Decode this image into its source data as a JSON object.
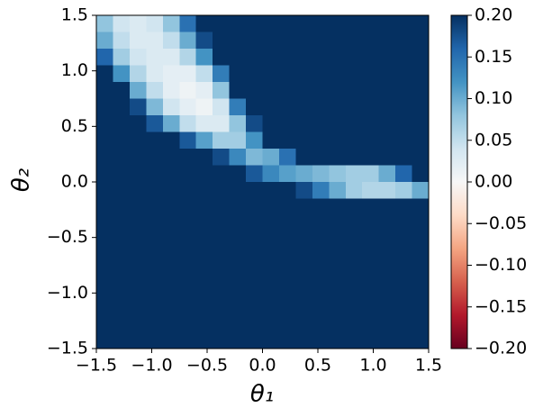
{
  "chart_data": {
    "type": "heatmap",
    "x_label": "θ₁",
    "y_label": "θ₂",
    "xlim": [
      -1.5,
      1.5
    ],
    "ylim": [
      -1.5,
      1.5
    ],
    "xticks": [
      {
        "value": -1.5,
        "label": "−1.5"
      },
      {
        "value": -1.0,
        "label": "−1.0"
      },
      {
        "value": -0.5,
        "label": "−0.5"
      },
      {
        "value": 0,
        "label": "0.0"
      },
      0.5,
      {
        "value": 1.0,
        "label": "1.0"
      },
      1.5
    ],
    "yticks": [
      {
        "value": -1.5,
        "label": "−1.5"
      },
      {
        "value": -1.0,
        "label": "−1.0"
      },
      {
        "value": -0.5,
        "label": "−0.5"
      },
      {
        "value": 0,
        "label": "0.0"
      },
      0.5,
      {
        "value": 1.0,
        "label": "1.0"
      },
      1.5
    ],
    "colorscale": [
      "#67001f",
      "#b2182b",
      "#d6604d",
      "#f4a582",
      "#fddbc7",
      "#f7f7f7",
      "#d1e5f0",
      "#92c5de",
      "#4393c3",
      "#2166ac",
      "#053061"
    ],
    "clim": [
      -0.2,
      0.2
    ],
    "cticks": [
      {
        "value": -0.2,
        "label": "−0.20"
      },
      {
        "value": -0.15,
        "label": "−0.15"
      },
      {
        "value": -0.1,
        "label": "−0.10"
      },
      {
        "value": -0.05,
        "label": "−0.05"
      },
      {
        "value": 0,
        "label": "0.00"
      },
      0.05,
      {
        "value": 0.1,
        "label": "0.10"
      },
      0.15,
      {
        "value": 0.2,
        "label": "0.20"
      }
    ],
    "x": [
      -1.425,
      -1.275,
      -1.125,
      -0.975,
      -0.825,
      -0.675,
      -0.525,
      -0.375,
      -0.225,
      -0.075,
      0.075,
      0.225,
      0.375,
      0.525,
      0.675,
      0.825,
      0.975,
      1.125,
      1.275,
      1.425
    ],
    "y": [
      1.425,
      1.275,
      1.125,
      0.975,
      0.825,
      0.675,
      0.525,
      0.375,
      0.225,
      0.075,
      -0.075,
      -0.225,
      -0.375,
      -0.525,
      -0.675,
      -0.825,
      -0.975,
      -1.125,
      -1.275,
      -1.425
    ],
    "z": [
      [
        0.08,
        0.04,
        0.03,
        0.04,
        0.08,
        0.15,
        0.2,
        0.2,
        0.2,
        0.2,
        0.2,
        0.2,
        0.2,
        0.2,
        0.2,
        0.2,
        0.2,
        0.2,
        0.2,
        0.2
      ],
      [
        0.1,
        0.05,
        0.03,
        0.03,
        0.05,
        0.1,
        0.18,
        0.2,
        0.2,
        0.2,
        0.2,
        0.2,
        0.2,
        0.2,
        0.2,
        0.2,
        0.2,
        0.2,
        0.2,
        0.2
      ],
      [
        0.16,
        0.07,
        0.04,
        0.03,
        0.03,
        0.06,
        0.12,
        0.2,
        0.2,
        0.2,
        0.2,
        0.2,
        0.2,
        0.2,
        0.2,
        0.2,
        0.2,
        0.2,
        0.2,
        0.2
      ],
      [
        0.2,
        0.12,
        0.06,
        0.03,
        0.02,
        0.02,
        0.05,
        0.14,
        0.2,
        0.2,
        0.2,
        0.2,
        0.2,
        0.2,
        0.2,
        0.2,
        0.2,
        0.2,
        0.2,
        0.2
      ],
      [
        0.2,
        0.2,
        0.1,
        0.05,
        0.02,
        0.01,
        0.02,
        0.08,
        0.2,
        0.2,
        0.2,
        0.2,
        0.2,
        0.2,
        0.2,
        0.2,
        0.2,
        0.2,
        0.2,
        0.2
      ],
      [
        0.2,
        0.2,
        0.18,
        0.09,
        0.04,
        0.02,
        0.01,
        0.04,
        0.14,
        0.2,
        0.2,
        0.2,
        0.2,
        0.2,
        0.2,
        0.2,
        0.2,
        0.2,
        0.2,
        0.2
      ],
      [
        0.2,
        0.2,
        0.2,
        0.17,
        0.1,
        0.05,
        0.03,
        0.03,
        0.08,
        0.18,
        0.2,
        0.2,
        0.2,
        0.2,
        0.2,
        0.2,
        0.2,
        0.2,
        0.2,
        0.2
      ],
      [
        0.2,
        0.2,
        0.2,
        0.2,
        0.2,
        0.17,
        0.11,
        0.07,
        0.07,
        0.12,
        0.2,
        0.2,
        0.2,
        0.2,
        0.2,
        0.2,
        0.2,
        0.2,
        0.2,
        0.2
      ],
      [
        0.2,
        0.2,
        0.2,
        0.2,
        0.2,
        0.2,
        0.2,
        0.18,
        0.13,
        0.09,
        0.1,
        0.15,
        0.2,
        0.2,
        0.2,
        0.2,
        0.2,
        0.2,
        0.2,
        0.2
      ],
      [
        0.2,
        0.2,
        0.2,
        0.2,
        0.2,
        0.2,
        0.2,
        0.2,
        0.2,
        0.17,
        0.13,
        0.11,
        0.1,
        0.09,
        0.08,
        0.07,
        0.07,
        0.1,
        0.16,
        0.2
      ],
      [
        0.2,
        0.2,
        0.2,
        0.2,
        0.2,
        0.2,
        0.2,
        0.2,
        0.2,
        0.2,
        0.2,
        0.2,
        0.18,
        0.14,
        0.1,
        0.07,
        0.06,
        0.06,
        0.07,
        0.1
      ],
      [
        0.2,
        0.2,
        0.2,
        0.2,
        0.2,
        0.2,
        0.2,
        0.2,
        0.2,
        0.2,
        0.2,
        0.2,
        0.2,
        0.2,
        0.2,
        0.2,
        0.2,
        0.2,
        0.2,
        0.2
      ],
      [
        0.2,
        0.2,
        0.2,
        0.2,
        0.2,
        0.2,
        0.2,
        0.2,
        0.2,
        0.2,
        0.2,
        0.2,
        0.2,
        0.2,
        0.2,
        0.2,
        0.2,
        0.2,
        0.2,
        0.2
      ],
      [
        0.2,
        0.2,
        0.2,
        0.2,
        0.2,
        0.2,
        0.2,
        0.2,
        0.2,
        0.2,
        0.2,
        0.2,
        0.2,
        0.2,
        0.2,
        0.2,
        0.2,
        0.2,
        0.2,
        0.2
      ],
      [
        0.2,
        0.2,
        0.2,
        0.2,
        0.2,
        0.2,
        0.2,
        0.2,
        0.2,
        0.2,
        0.2,
        0.2,
        0.2,
        0.2,
        0.2,
        0.2,
        0.2,
        0.2,
        0.2,
        0.2
      ],
      [
        0.2,
        0.2,
        0.2,
        0.2,
        0.2,
        0.2,
        0.2,
        0.2,
        0.2,
        0.2,
        0.2,
        0.2,
        0.2,
        0.2,
        0.2,
        0.2,
        0.2,
        0.2,
        0.2,
        0.2
      ],
      [
        0.2,
        0.2,
        0.2,
        0.2,
        0.2,
        0.2,
        0.2,
        0.2,
        0.2,
        0.2,
        0.2,
        0.2,
        0.2,
        0.2,
        0.2,
        0.2,
        0.2,
        0.2,
        0.2,
        0.2
      ],
      [
        0.2,
        0.2,
        0.2,
        0.2,
        0.2,
        0.2,
        0.2,
        0.2,
        0.2,
        0.2,
        0.2,
        0.2,
        0.2,
        0.2,
        0.2,
        0.2,
        0.2,
        0.2,
        0.2,
        0.2
      ],
      [
        0.2,
        0.2,
        0.2,
        0.2,
        0.2,
        0.2,
        0.2,
        0.2,
        0.2,
        0.2,
        0.2,
        0.2,
        0.2,
        0.2,
        0.2,
        0.2,
        0.2,
        0.2,
        0.2,
        0.2
      ],
      [
        0.2,
        0.2,
        0.2,
        0.2,
        0.2,
        0.2,
        0.2,
        0.2,
        0.2,
        0.2,
        0.2,
        0.2,
        0.2,
        0.2,
        0.2,
        0.2,
        0.2,
        0.2,
        0.2,
        0.2
      ]
    ]
  }
}
